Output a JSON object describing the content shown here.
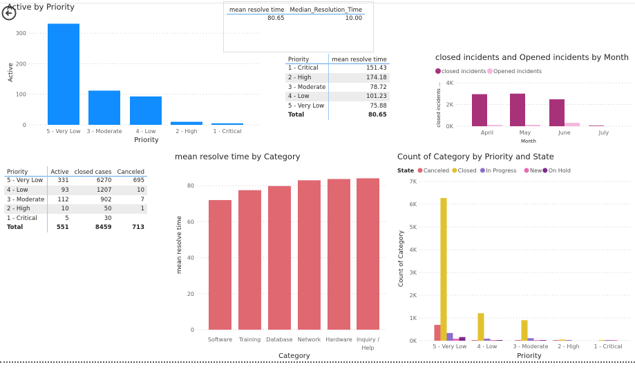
{
  "colors": {
    "active_bar": "#118dff",
    "category_bar": "#e06871",
    "closed_incidents": "#a8327a",
    "opened_incidents": "#f4b8dd",
    "canceled": "#e06871",
    "closed": "#e2c12f",
    "in_progress": "#8a6fd1",
    "new": "#ea6bb5",
    "on_hold": "#7b2a8b"
  },
  "back_button": {
    "icon": "back-arrow-icon"
  },
  "kpi_card": {
    "headers": [
      "mean resolve time",
      "Median_Resolution_Time"
    ],
    "values": [
      "80.65",
      "10.00"
    ]
  },
  "priority_mean_table": {
    "headers": [
      "Priority",
      "mean resolve time"
    ],
    "rows": [
      [
        "1 - Critical",
        "151.43"
      ],
      [
        "2 - High",
        "174.18"
      ],
      [
        "3 - Moderate",
        "78.72"
      ],
      [
        "4 - Low",
        "101.23"
      ],
      [
        "5 - Very Low",
        "75.88"
      ]
    ],
    "total": [
      "Total",
      "80.65"
    ]
  },
  "priority_table": {
    "headers": [
      "Priority",
      "Active",
      "closed cases",
      "Canceled"
    ],
    "rows": [
      [
        "5 - Very Low",
        "331",
        "6270",
        "695"
      ],
      [
        "4 - Low",
        "93",
        "1207",
        "10"
      ],
      [
        "3 - Moderate",
        "112",
        "902",
        "7"
      ],
      [
        "2 - High",
        "10",
        "50",
        "1"
      ],
      [
        "1 - Critical",
        "5",
        "30",
        ""
      ]
    ],
    "total": [
      "Total",
      "551",
      "8459",
      "713"
    ]
  },
  "chart_data": [
    {
      "id": "active",
      "type": "bar",
      "title": "Active by Priority",
      "xlabel": "Priority",
      "ylabel": "Active",
      "categories": [
        "5 - Very Low",
        "3 - Moderate",
        "4 - Low",
        "2 - High",
        "1 - Critical"
      ],
      "values": [
        331,
        112,
        93,
        10,
        5
      ],
      "ylim": [
        0,
        330
      ],
      "yticks": [
        "0",
        "100",
        "200",
        "300"
      ],
      "ytick_values": [
        0,
        100,
        200,
        300
      ],
      "grid": true
    },
    {
      "id": "monthly",
      "type": "bar",
      "title": "closed incidents and Opened incidents by Month",
      "xlabel": "Month",
      "ylabel": "closed incidents ...",
      "categories": [
        "April",
        "May",
        "June",
        "July"
      ],
      "series": [
        {
          "name": "closed incidents",
          "values": [
            2950,
            3000,
            2480,
            80
          ]
        },
        {
          "name": "Opened incidents",
          "values": [
            120,
            130,
            310,
            0
          ]
        }
      ],
      "ylim": [
        0,
        4000
      ],
      "yticks": [
        "0K",
        "2K",
        "4K"
      ],
      "ytick_values": [
        0,
        2000,
        4000
      ],
      "grid": true,
      "legend": "top-left"
    },
    {
      "id": "category",
      "type": "bar",
      "title": "mean resolve time by Category",
      "xlabel": "Category",
      "ylabel": "mean resolve time",
      "categories": [
        "Software",
        "Training",
        "Database",
        "Network",
        "Hardware",
        "Inquiry / Help"
      ],
      "values": [
        72,
        77.5,
        79.8,
        83,
        83.7,
        84.1
      ],
      "ylim": [
        0,
        88
      ],
      "yticks": [
        "0",
        "20",
        "40",
        "60",
        "80"
      ],
      "ytick_values": [
        0,
        20,
        40,
        60,
        80
      ],
      "grid": true
    },
    {
      "id": "state",
      "type": "bar",
      "title": "Count of Category by Priority and State",
      "xlabel": "Priority",
      "ylabel": "Count of Category",
      "legend_title": "State",
      "categories": [
        "5 - Very Low",
        "4 - Low",
        "3 - Moderate",
        "2 - High",
        "1 - Critical"
      ],
      "series": [
        {
          "name": "Canceled",
          "values": [
            695,
            10,
            7,
            1,
            0
          ]
        },
        {
          "name": "Closed",
          "values": [
            6270,
            1207,
            902,
            50,
            30
          ]
        },
        {
          "name": "In Progress",
          "values": [
            340,
            90,
            110,
            20,
            15
          ]
        },
        {
          "name": "New",
          "values": [
            90,
            20,
            20,
            0,
            15
          ]
        },
        {
          "name": "On Hold",
          "values": [
            160,
            20,
            20,
            0,
            0
          ]
        }
      ],
      "ylim": [
        0,
        7000
      ],
      "yticks": [
        "0K",
        "1K",
        "2K",
        "3K",
        "4K",
        "5K",
        "6K",
        "7K"
      ],
      "ytick_values": [
        0,
        1000,
        2000,
        3000,
        4000,
        5000,
        6000,
        7000
      ],
      "grid": true,
      "legend": "top-left"
    }
  ]
}
